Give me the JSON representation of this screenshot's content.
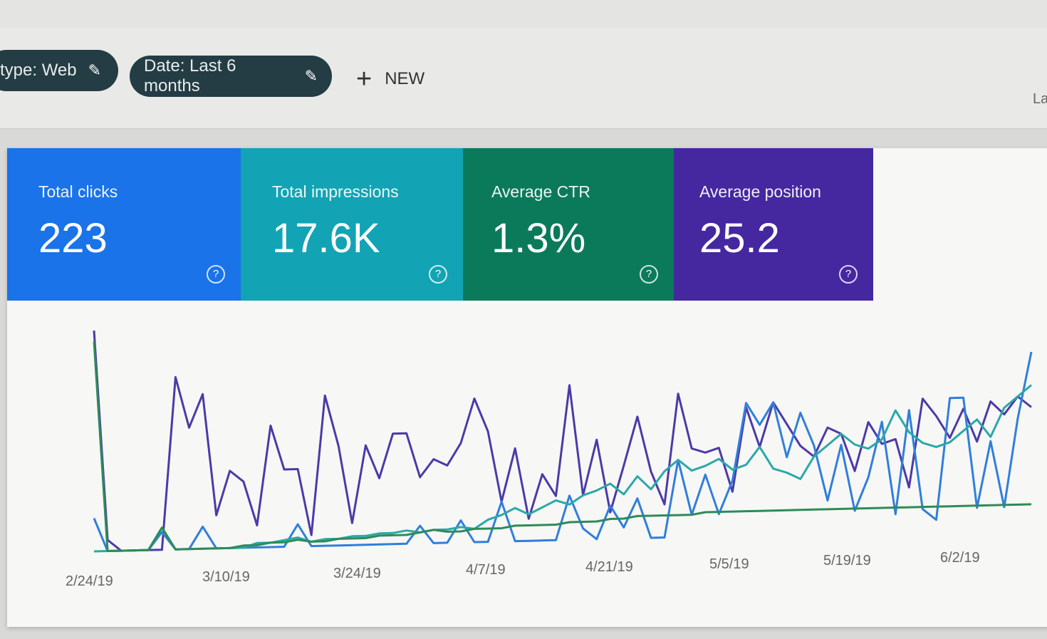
{
  "filters": {
    "search_type_label": "type: Web",
    "date_label": "Date: Last 6 months",
    "new_label": "NEW",
    "cut_off_label": "La"
  },
  "metrics": [
    {
      "label": "Total clicks",
      "value": "223",
      "color": "#1a73e8"
    },
    {
      "label": "Total impressions",
      "value": "17.6K",
      "color": "#12a4b4"
    },
    {
      "label": "Average CTR",
      "value": "1.3%",
      "color": "#0b7a5a"
    },
    {
      "label": "Average position",
      "value": "25.2",
      "color": "#4527a0"
    }
  ],
  "chart_data": {
    "type": "line",
    "x_ticks": [
      "2/24/19",
      "3/10/19",
      "3/24/19",
      "4/7/19",
      "4/21/19",
      "5/5/19",
      "5/19/19",
      "6/2/19"
    ],
    "grid": false,
    "series": [
      {
        "color": "#4b3aa8",
        "values": [
          100,
          5,
          0,
          0,
          0,
          0,
          78,
          55,
          70,
          15,
          35,
          30,
          10,
          55,
          35,
          35,
          5,
          68,
          45,
          10,
          45,
          30,
          50,
          50,
          30,
          38,
          35,
          45,
          65,
          50,
          18,
          42,
          10,
          30,
          20,
          70,
          20,
          45,
          12,
          33,
          55,
          30,
          15,
          65,
          40,
          38,
          40,
          20,
          58,
          40,
          60,
          50,
          40,
          35,
          48,
          45,
          28,
          50,
          40,
          42,
          20,
          60,
          52,
          42,
          55,
          40,
          58,
          52,
          60,
          55
        ]
      },
      {
        "color": "#2f7fdc",
        "values": [
          15,
          0,
          0,
          0,
          0,
          8,
          0,
          0,
          10,
          0,
          0,
          0,
          0,
          0,
          0,
          10,
          0,
          0,
          0,
          0,
          0,
          0,
          0,
          0,
          8,
          0,
          0,
          10,
          0,
          0,
          18,
          0,
          0,
          0,
          0,
          20,
          5,
          0,
          15,
          5,
          18,
          0,
          0,
          35,
          10,
          28,
          10,
          25,
          60,
          50,
          60,
          35,
          55,
          40,
          15,
          40,
          10,
          25,
          50,
          8,
          55,
          10,
          5,
          60,
          60,
          10,
          40,
          10,
          50,
          80
        ]
      },
      {
        "color": "#2aa8a8",
        "values": [
          0,
          0,
          0,
          0,
          0,
          10,
          0,
          0,
          0,
          0,
          0,
          0,
          2,
          2,
          3,
          4,
          2,
          3,
          3,
          4,
          4,
          5,
          5,
          6,
          5,
          6,
          6,
          7,
          6,
          10,
          12,
          15,
          12,
          15,
          18,
          16,
          20,
          22,
          25,
          20,
          28,
          22,
          30,
          35,
          30,
          32,
          35,
          30,
          32,
          40,
          30,
          28,
          25,
          35,
          40,
          45,
          40,
          38,
          42,
          55,
          45,
          40,
          38,
          40,
          45,
          50,
          42,
          55,
          60,
          65
        ]
      },
      {
        "color": "#2e8b57",
        "values": [
          95,
          0,
          0,
          0,
          0,
          10,
          0,
          0,
          0,
          0,
          0,
          1,
          1,
          2,
          2,
          3,
          2,
          2,
          3,
          3,
          3,
          4,
          4,
          4,
          5,
          6,
          5,
          5,
          6,
          6,
          6,
          7,
          7,
          7,
          7,
          8,
          8,
          8,
          9,
          9,
          10,
          10,
          10,
          10,
          10,
          11,
          11,
          11,
          11,
          11,
          11,
          11,
          11,
          11,
          11,
          11,
          11,
          11,
          11,
          11,
          11,
          11,
          11,
          11,
          11,
          11,
          11,
          11,
          11,
          11
        ]
      }
    ]
  }
}
